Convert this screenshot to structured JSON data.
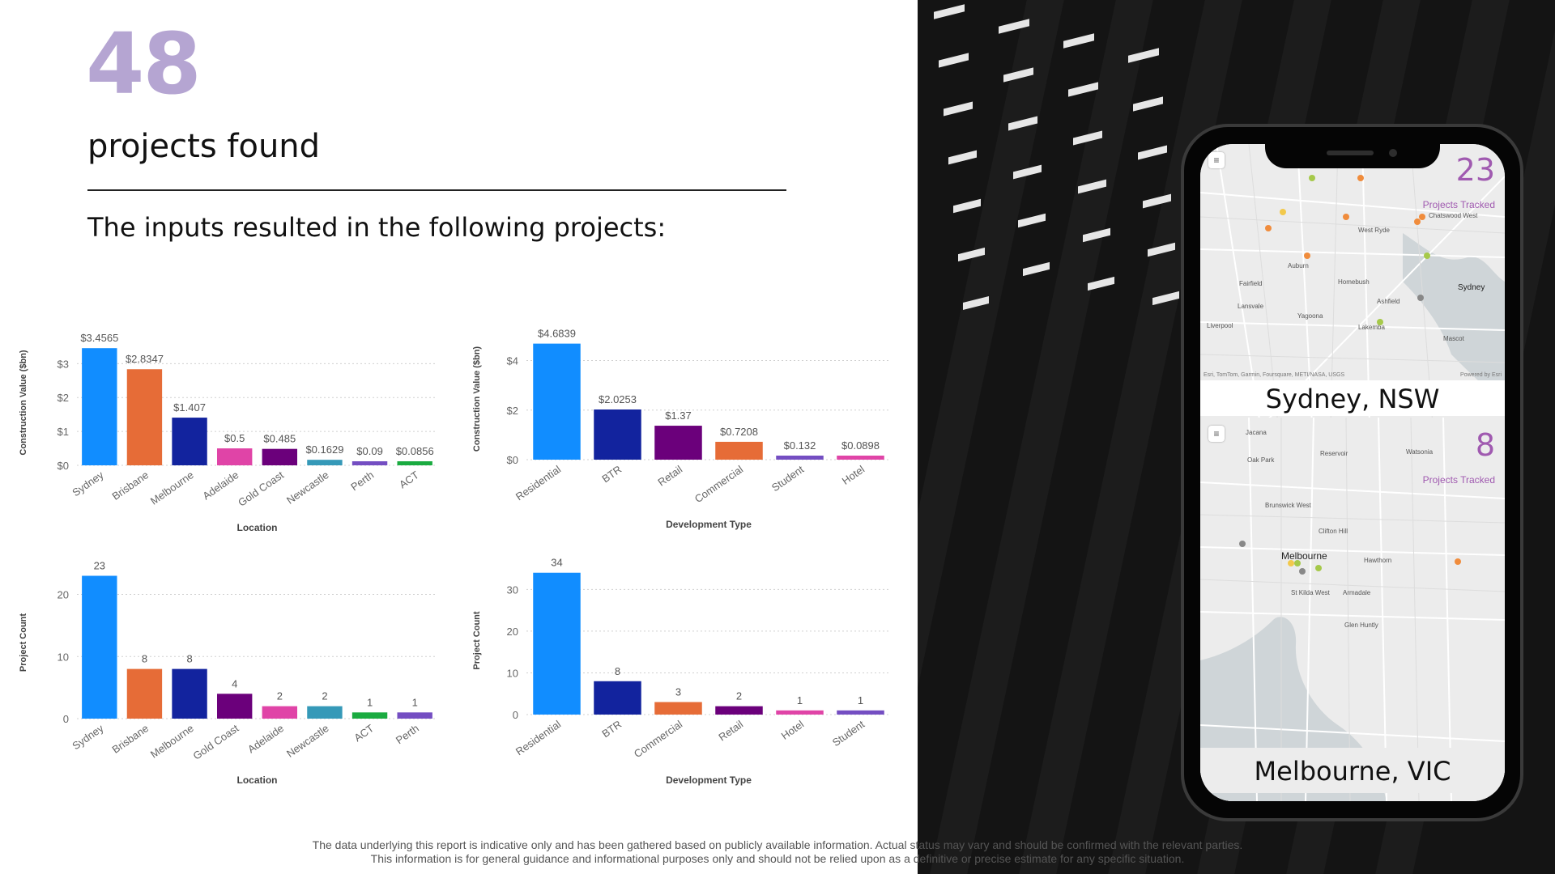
{
  "header": {
    "count": "48",
    "headline": "projects found",
    "subhead": "The inputs resulted in the following projects:"
  },
  "chart_data": [
    {
      "type": "bar",
      "xlabel": "Location",
      "ylabel": "Construction Value ($bn)",
      "categories": [
        "Sydney",
        "Brisbane",
        "Melbourne",
        "Adelaide",
        "Gold Coast",
        "Newcastle",
        "Perth",
        "ACT"
      ],
      "values": [
        3.4565,
        2.8347,
        1.407,
        0.5,
        0.485,
        0.1629,
        0.09,
        0.0856
      ],
      "labels": [
        "$3.4565",
        "$2.8347",
        "$1.407",
        "$0.5",
        "$0.485",
        "$0.1629",
        "$0.09",
        "$0.0856"
      ],
      "colors": [
        "#118dff",
        "#e66c37",
        "#12239e",
        "#e044a7",
        "#6b007b",
        "#3599b8",
        "#744ec2",
        "#1aab40"
      ],
      "yticks": [
        0,
        1,
        2,
        3
      ],
      "ytick_labels": [
        "$0",
        "$1",
        "$2",
        "$3"
      ],
      "ylim": [
        0,
        3.7
      ]
    },
    {
      "type": "bar",
      "xlabel": "Development Type",
      "ylabel": "Construction Value ($bn)",
      "categories": [
        "Residential",
        "BTR",
        "Retail",
        "Commercial",
        "Student",
        "Hotel"
      ],
      "values": [
        4.6839,
        2.0253,
        1.37,
        0.7208,
        0.132,
        0.0898
      ],
      "labels": [
        "$4.6839",
        "$2.0253",
        "$1.37",
        "$0.7208",
        "$0.132",
        "$0.0898"
      ],
      "colors": [
        "#118dff",
        "#12239e",
        "#6b007b",
        "#e66c37",
        "#744ec2",
        "#e044a7"
      ],
      "yticks": [
        0,
        2,
        4
      ],
      "ytick_labels": [
        "$0",
        "$2",
        "$4"
      ],
      "ylim": [
        0,
        4.9
      ]
    },
    {
      "type": "bar",
      "xlabel": "Location",
      "ylabel": "Project Count",
      "categories": [
        "Sydney",
        "Brisbane",
        "Melbourne",
        "Gold Coast",
        "Adelaide",
        "Newcastle",
        "ACT",
        "Perth"
      ],
      "values": [
        23,
        8,
        8,
        4,
        2,
        2,
        1,
        1
      ],
      "labels": [
        "23",
        "8",
        "8",
        "4",
        "2",
        "2",
        "1",
        "1"
      ],
      "colors": [
        "#118dff",
        "#e66c37",
        "#12239e",
        "#6b007b",
        "#e044a7",
        "#3599b8",
        "#1aab40",
        "#744ec2"
      ],
      "yticks": [
        0,
        10,
        20
      ],
      "ytick_labels": [
        "0",
        "10",
        "20"
      ],
      "ylim": [
        0,
        24.5
      ]
    },
    {
      "type": "bar",
      "xlabel": "Development Type",
      "ylabel": "Project Count",
      "categories": [
        "Residential",
        "BTR",
        "Commercial",
        "Retail",
        "Hotel",
        "Student"
      ],
      "values": [
        34,
        8,
        3,
        2,
        1,
        1
      ],
      "labels": [
        "34",
        "8",
        "3",
        "2",
        "1",
        "1"
      ],
      "colors": [
        "#118dff",
        "#12239e",
        "#e66c37",
        "#6b007b",
        "#e044a7",
        "#744ec2"
      ],
      "yticks": [
        0,
        10,
        20,
        30
      ],
      "ytick_labels": [
        "0",
        "10",
        "20",
        "30"
      ],
      "ylim": [
        0,
        35.5
      ]
    }
  ],
  "phone": {
    "sydney": {
      "count": "23",
      "caption": "Projects Tracked",
      "city": "Sydney, NSW",
      "attribution": "Esri, TomTom, Garmin, Foursquare, METI/NASA, USGS",
      "powered": "Powered by Esri",
      "suburbs": [
        "West Ryde",
        "Chatswood West",
        "Auburn",
        "Fairfield",
        "Homebush",
        "Sydney",
        "Ashfield",
        "Lansvale",
        "Yagoona",
        "Lakemba",
        "Liverpool",
        "Mascot"
      ]
    },
    "melbourne": {
      "count": "8",
      "caption": "Projects Tracked",
      "city": "Melbourne, VIC",
      "suburbs": [
        "Jacana",
        "Oak Park",
        "Reservoir",
        "Watsonia",
        "Brunswick West",
        "Clifton Hill",
        "Melbourne",
        "Hawthorn",
        "St Kilda West",
        "Armadale",
        "Glen Huntly"
      ]
    },
    "menu_icon": "hamburger-icon"
  },
  "disclaimer": {
    "line1": "The data underlying this report is indicative only and  has been gathered based on publicly available information. Actual status may vary and should be confirmed with the relevant parties.",
    "line2": "This information is for general guidance and informational purposes only and should not be relied upon as a definitive or precise estimate for any specific situation."
  }
}
